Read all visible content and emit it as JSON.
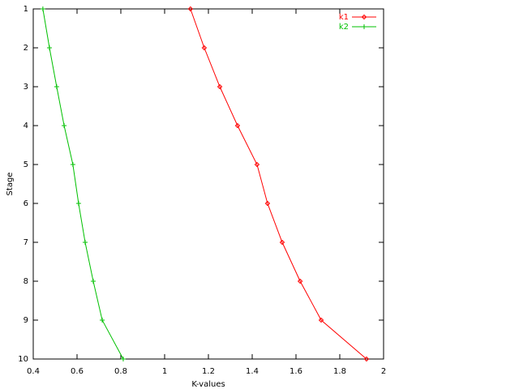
{
  "chart_data": {
    "type": "line",
    "orientation": "horizontal",
    "y_inverted": true,
    "x_label": "K-values",
    "y_label": "Stage",
    "stages": [
      1,
      2,
      3,
      4,
      5,
      6,
      7,
      8,
      9,
      10
    ],
    "series": [
      {
        "name": "k1",
        "color": "#ff0000",
        "marker": "diamond",
        "values": [
          1.118,
          1.181,
          1.252,
          1.333,
          1.422,
          1.47,
          1.537,
          1.619,
          1.715,
          1.922
        ]
      },
      {
        "name": "k2",
        "color": "#00c000",
        "marker": "plus",
        "values": [
          0.444,
          0.474,
          0.507,
          0.541,
          0.581,
          0.607,
          0.637,
          0.674,
          0.715,
          0.811
        ]
      }
    ],
    "xlim": [
      0.4,
      2
    ],
    "xticks": [
      0.4,
      0.6,
      0.8,
      1,
      1.2,
      1.4,
      1.6,
      1.8,
      2
    ],
    "ylim": [
      1,
      10
    ],
    "yticks": [
      1,
      2,
      3,
      4,
      5,
      6,
      7,
      8,
      9,
      10
    ],
    "legend": "top-right"
  }
}
